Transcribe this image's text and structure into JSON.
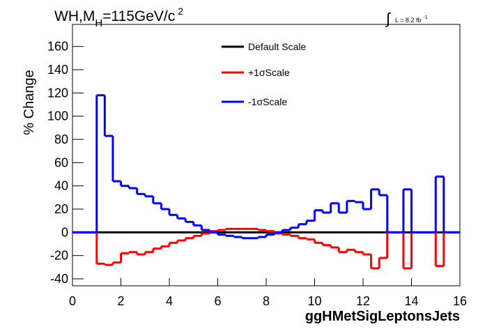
{
  "chart_data": {
    "type": "histogram",
    "title": {
      "main": "WH,M",
      "sub": "H",
      "rest": "=115GeV/c",
      "sup": "2"
    },
    "annotation": {
      "text": "L = 8.2 fb",
      "sup": "-1"
    },
    "xlabel": "ggHMetSigLeptonsJets",
    "ylabel": "% Change",
    "xlim": [
      0,
      16
    ],
    "ylim": [
      -46,
      179
    ],
    "xticks": [
      0,
      2,
      4,
      6,
      8,
      10,
      12,
      14,
      16
    ],
    "yticks": [
      -40,
      -20,
      0,
      20,
      40,
      60,
      80,
      100,
      120,
      140,
      160
    ],
    "bins": [
      0,
      0.333,
      0.667,
      1,
      1.333,
      1.667,
      2,
      2.333,
      2.667,
      3,
      3.333,
      3.667,
      4,
      4.333,
      4.667,
      5,
      5.333,
      5.667,
      6,
      6.333,
      6.667,
      7,
      7.333,
      7.667,
      8,
      8.333,
      8.667,
      9,
      9.333,
      9.667,
      10,
      10.333,
      10.667,
      11,
      11.333,
      11.667,
      12,
      12.333,
      12.667,
      13,
      13.333,
      13.667,
      14,
      14.333,
      14.667,
      15,
      15.333,
      15.667,
      16
    ],
    "series": [
      {
        "name": "Default Scale",
        "color": "#000000",
        "values": [
          0,
          0,
          0,
          0,
          0,
          0,
          0,
          0,
          0,
          0,
          0,
          0,
          0,
          0,
          0,
          0,
          0,
          0,
          0,
          0,
          0,
          0,
          0,
          0,
          0,
          0,
          0,
          0,
          0,
          0,
          0,
          0,
          0,
          0,
          0,
          0,
          0,
          0,
          0,
          0,
          0,
          0,
          0,
          0,
          0,
          0,
          0,
          0
        ]
      },
      {
        "name": "+1σScale",
        "color": "#ff0000",
        "values": [
          0,
          0,
          0,
          -27,
          -28,
          -26,
          -18,
          -17,
          -19,
          -17,
          -14,
          -12,
          -9,
          -7,
          -5,
          -3,
          -1,
          1,
          2,
          3,
          3,
          3,
          3,
          2,
          1,
          -1,
          -2,
          -3,
          -5,
          -6,
          -9,
          -11,
          -13,
          -17,
          -15,
          -17,
          -19,
          -31,
          -22,
          0,
          0,
          -31,
          0,
          0,
          0,
          -29,
          0,
          0
        ]
      },
      {
        "name": "-1σScale",
        "color": "#0000ff",
        "values": [
          0,
          0,
          0,
          118,
          83,
          44,
          40,
          38,
          33,
          31,
          25,
          20,
          15,
          12,
          9,
          6,
          2,
          0,
          -2,
          -3,
          -4,
          -5,
          -5,
          -4,
          -2,
          0,
          2,
          4,
          7,
          10,
          19,
          17,
          25,
          17,
          27,
          26,
          20,
          37,
          32,
          0,
          0,
          37,
          0,
          0,
          0,
          48,
          0,
          0
        ]
      }
    ]
  }
}
